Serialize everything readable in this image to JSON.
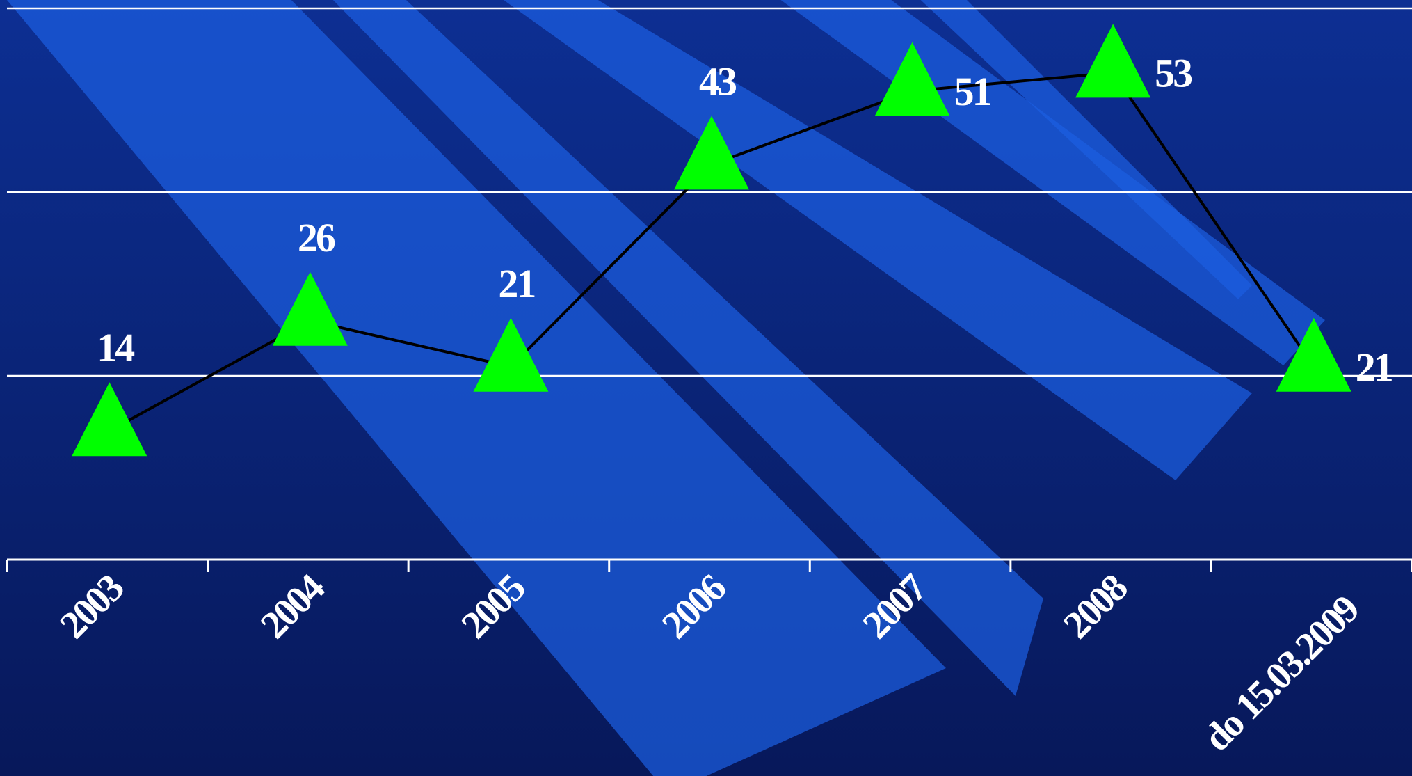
{
  "chart_data": {
    "type": "line",
    "title": "",
    "xlabel": "",
    "ylabel": "",
    "categories": [
      "2003",
      "2004",
      "2005",
      "2006",
      "2007",
      "2008",
      "do 15.03.2009"
    ],
    "series": [
      {
        "values": [
          14,
          26,
          21,
          43,
          51,
          53,
          21
        ]
      }
    ],
    "ylim": [
      0,
      60
    ],
    "grid": "horizontal",
    "legend": "none",
    "marker": "triangle",
    "colors": {
      "background_top": "#0d2f93",
      "background_bottom": "#07185a",
      "stripe": "#1c5ee0",
      "marker": "#00ff00",
      "line": "#000000",
      "grid": "#ffffff",
      "text": "#ffffff"
    }
  }
}
